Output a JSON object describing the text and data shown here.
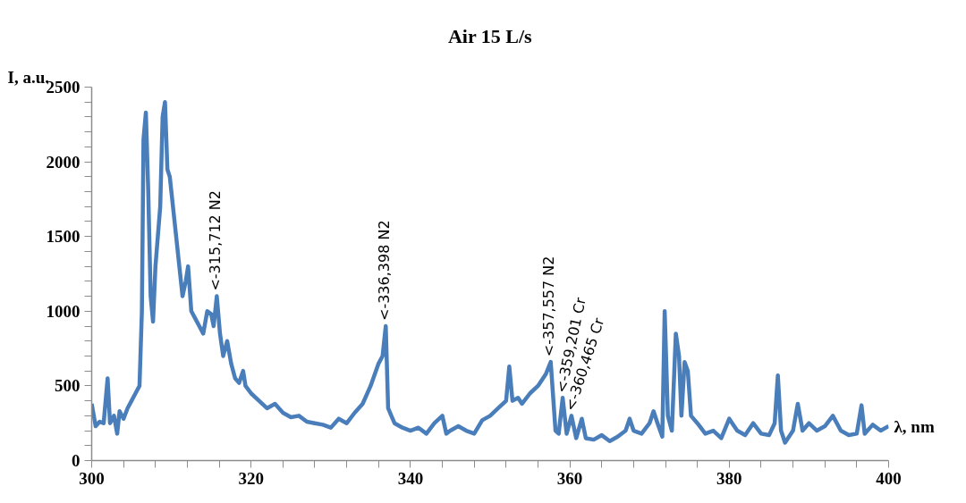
{
  "chart_data": {
    "type": "line",
    "title": "Air 15 L/s",
    "xlabel": "λ, nm",
    "ylabel": "I, a.u.",
    "xlim": [
      300,
      400
    ],
    "xticks": [
      300,
      320,
      340,
      360,
      380,
      400
    ],
    "ylim": [
      0,
      2500
    ],
    "yticks": [
      0,
      500,
      1000,
      1500,
      2000,
      2500
    ],
    "grid": false,
    "marker": "none",
    "line_style": "solid",
    "series": [
      {
        "color": "#4a7ebb",
        "x": [
          300,
          300.5,
          301,
          301.5,
          302,
          302.3,
          302.8,
          303.2,
          303.5,
          304,
          304.5,
          305,
          305.5,
          306,
          306.3,
          306.5,
          306.8,
          307.1,
          307.4,
          307.7,
          308,
          308.3,
          308.6,
          308.9,
          309.2,
          309.5,
          309.8,
          310.2,
          310.6,
          311,
          311.4,
          311.8,
          312.1,
          312.5,
          313,
          313.5,
          314,
          314.5,
          315,
          315.3,
          315.7,
          316.1,
          316.5,
          317,
          317.5,
          318,
          318.5,
          319,
          319.3,
          320,
          321,
          322,
          323,
          324,
          325,
          326,
          327,
          328,
          329,
          330,
          331,
          332,
          333,
          334,
          335,
          336,
          336.5,
          336.9,
          337.2,
          337.6,
          338,
          339,
          340,
          341,
          342,
          343,
          344,
          344.5,
          345,
          346,
          347,
          348,
          349,
          350,
          351,
          352,
          352.4,
          352.8,
          353.5,
          354,
          355,
          356,
          357,
          357.6,
          358.2,
          358.6,
          359.1,
          359.6,
          360.2,
          360.8,
          361.5,
          362,
          363,
          364,
          365,
          366,
          367,
          367.5,
          368,
          369,
          370,
          370.5,
          371,
          371.6,
          371.9,
          372.3,
          372.8,
          373.3,
          373.7,
          374,
          374.4,
          374.8,
          375.2,
          376,
          377,
          378,
          379,
          380,
          381,
          382,
          383,
          384,
          385,
          385.7,
          386.1,
          386.5,
          387,
          388,
          388.6,
          389.2,
          390,
          391,
          392,
          393,
          394,
          395,
          396,
          396.6,
          397,
          398,
          399,
          400
        ],
        "values": [
          380,
          230,
          260,
          250,
          550,
          250,
          300,
          180,
          330,
          280,
          350,
          400,
          450,
          500,
          1000,
          2150,
          2330,
          1800,
          1100,
          930,
          1300,
          1500,
          1700,
          2300,
          2400,
          1950,
          1900,
          1700,
          1500,
          1300,
          1100,
          1200,
          1300,
          1000,
          950,
          900,
          850,
          1000,
          980,
          900,
          1100,
          850,
          700,
          800,
          650,
          550,
          520,
          600,
          500,
          450,
          400,
          350,
          380,
          320,
          290,
          300,
          260,
          250,
          240,
          220,
          280,
          250,
          320,
          380,
          500,
          650,
          700,
          900,
          350,
          300,
          250,
          220,
          200,
          220,
          180,
          250,
          300,
          180,
          200,
          230,
          200,
          180,
          270,
          300,
          350,
          400,
          630,
          400,
          420,
          380,
          450,
          500,
          580,
          660,
          200,
          180,
          420,
          180,
          300,
          150,
          280,
          150,
          140,
          170,
          130,
          160,
          200,
          280,
          200,
          180,
          250,
          330,
          250,
          160,
          1000,
          300,
          200,
          850,
          700,
          300,
          660,
          600,
          300,
          250,
          180,
          200,
          150,
          280,
          200,
          170,
          250,
          180,
          170,
          250,
          570,
          200,
          120,
          200,
          380,
          200,
          250,
          200,
          230,
          300,
          200,
          170,
          180,
          370,
          180,
          240,
          200,
          230
        ]
      }
    ],
    "annotations": [
      {
        "text": "<-315,712 N2",
        "x": 315.7,
        "y": 1100
      },
      {
        "text": "<-336,398 N2",
        "x": 336.9,
        "y": 900
      },
      {
        "text": "<-357,557 N2",
        "x": 357.6,
        "y": 660
      },
      {
        "text": "<-359,201 Cr",
        "x": 359.1,
        "y": 420
      },
      {
        "text": "<-360,465 Cr",
        "x": 360.2,
        "y": 300
      }
    ]
  }
}
